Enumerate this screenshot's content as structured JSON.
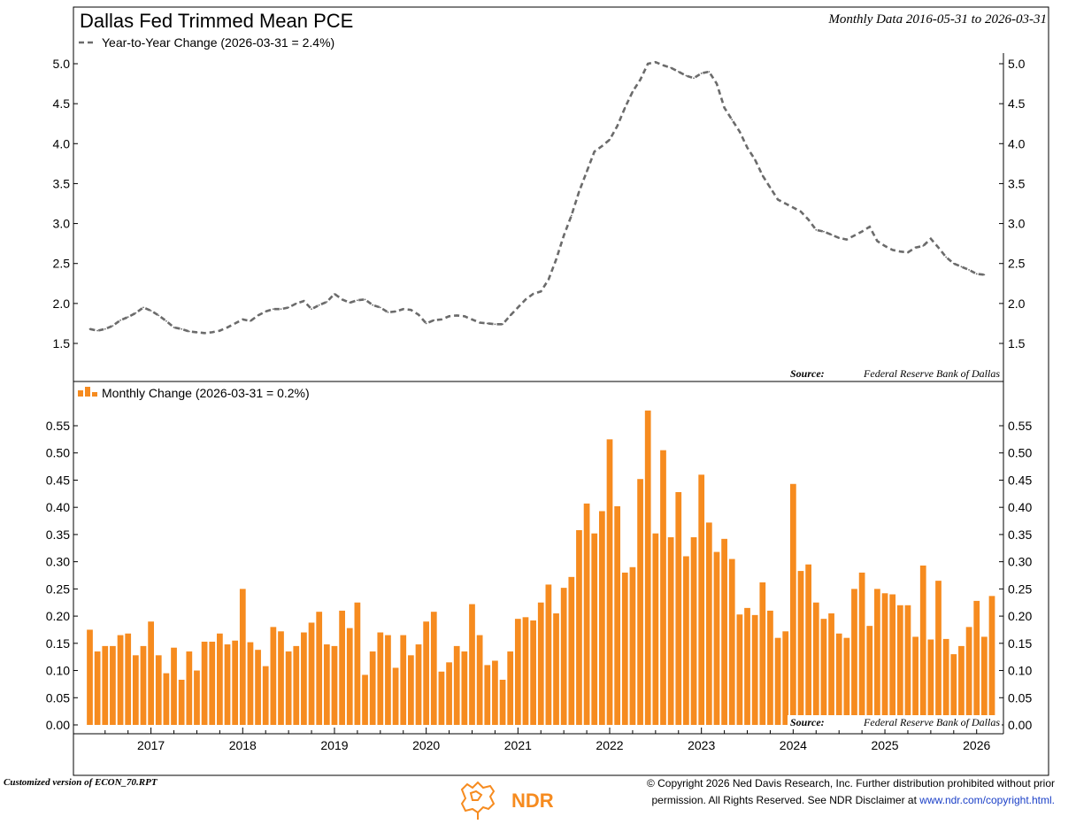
{
  "header": {
    "title": "Dallas Fed Trimmed Mean PCE",
    "date_range": "Monthly Data 2016-05-31 to 2026-03-31"
  },
  "colors": {
    "line": "#6b6b6b",
    "bar": "#f68b1f",
    "link": "#1a3fc7",
    "logo": "#f68b1f"
  },
  "chart_data": [
    {
      "type": "line",
      "legend": "Year-to-Year Change (2026-03-31 = 2.4%)",
      "source_label": "Source:",
      "source_text": "Federal Reserve Bank of Dallas",
      "ylim": [
        1.3,
        5.3
      ],
      "yticks": [
        "1.5",
        "2.0",
        "2.5",
        "3.0",
        "3.5",
        "4.0",
        "4.5",
        "5.0"
      ],
      "start": "2016-05",
      "series": [
        {
          "values": [
            1.68,
            1.66,
            1.68,
            1.72,
            1.79,
            1.83,
            1.88,
            1.95,
            1.91,
            1.85,
            1.78,
            1.7,
            1.68,
            1.65,
            1.64,
            1.63,
            1.64,
            1.66,
            1.7,
            1.75,
            1.8,
            1.78,
            1.85,
            1.9,
            1.93,
            1.93,
            1.95,
            2.0,
            2.03,
            1.93,
            1.98,
            2.02,
            2.12,
            2.05,
            2.01,
            2.04,
            2.05,
            1.98,
            1.95,
            1.89,
            1.9,
            1.93,
            1.92,
            1.86,
            1.75,
            1.79,
            1.8,
            1.84,
            1.85,
            1.84,
            1.8,
            1.76,
            1.75,
            1.74,
            1.74,
            1.85,
            1.95,
            2.05,
            2.12,
            2.15,
            2.3,
            2.55,
            2.85,
            3.1,
            3.4,
            3.65,
            3.9,
            3.97,
            4.05,
            4.22,
            4.45,
            4.65,
            4.8,
            5.0,
            5.02,
            4.98,
            4.95,
            4.9,
            4.85,
            4.82,
            4.88,
            4.9,
            4.75,
            4.45,
            4.3,
            4.15,
            3.95,
            3.8,
            3.6,
            3.45,
            3.3,
            3.25,
            3.2,
            3.15,
            3.05,
            2.92,
            2.9,
            2.86,
            2.82,
            2.8,
            2.85,
            2.9,
            2.96,
            2.78,
            2.72,
            2.67,
            2.65,
            2.64,
            2.7,
            2.72,
            2.81,
            2.7,
            2.58,
            2.5,
            2.46,
            2.42,
            2.37,
            2.36
          ]
        }
      ]
    },
    {
      "type": "bar",
      "legend": "Monthly Change (2026-03-31 = 0.2%)",
      "source_label": "Source:",
      "source_text": "Federal Reserve Bank of Dallas",
      "ylim": [
        0.0,
        0.6
      ],
      "yticks": [
        "0.00",
        "0.05",
        "0.10",
        "0.15",
        "0.20",
        "0.25",
        "0.30",
        "0.35",
        "0.40",
        "0.45",
        "0.50",
        "0.55"
      ],
      "xticks": [
        "2017",
        "2018",
        "2019",
        "2020",
        "2021",
        "2022",
        "2023",
        "2024",
        "2025",
        "2026"
      ],
      "start": "2016-05",
      "series": [
        {
          "values": [
            0.175,
            0.135,
            0.145,
            0.145,
            0.165,
            0.168,
            0.128,
            0.145,
            0.19,
            0.128,
            0.095,
            0.142,
            0.083,
            0.135,
            0.1,
            0.153,
            0.153,
            0.168,
            0.148,
            0.155,
            0.25,
            0.152,
            0.138,
            0.108,
            0.18,
            0.172,
            0.135,
            0.145,
            0.17,
            0.188,
            0.208,
            0.148,
            0.145,
            0.21,
            0.178,
            0.225,
            0.092,
            0.135,
            0.17,
            0.165,
            0.105,
            0.165,
            0.128,
            0.148,
            0.19,
            0.208,
            0.098,
            0.115,
            0.145,
            0.135,
            0.222,
            0.165,
            0.11,
            0.118,
            0.083,
            0.135,
            0.195,
            0.198,
            0.192,
            0.225,
            0.258,
            0.205,
            0.252,
            0.272,
            0.358,
            0.407,
            0.352,
            0.393,
            0.525,
            0.402,
            0.28,
            0.29,
            0.452,
            0.578,
            0.352,
            0.505,
            0.345,
            0.428,
            0.31,
            0.345,
            0.46,
            0.372,
            0.318,
            0.342,
            0.305,
            0.203,
            0.215,
            0.202,
            0.262,
            0.21,
            0.16,
            0.172,
            0.443,
            0.283,
            0.295,
            0.225,
            0.195,
            0.205,
            0.168,
            0.16,
            0.25,
            0.28,
            0.182,
            0.25,
            0.242,
            0.24,
            0.22,
            0.22,
            0.162,
            0.293,
            0.157,
            0.265,
            0.158,
            0.13,
            0.145,
            0.18,
            0.228,
            0.162,
            0.237
          ]
        }
      ]
    }
  ],
  "footer": {
    "custom": "Customized version of ECON_70.RPT",
    "copyright_line1": "© Copyright 2026 Ned Davis Research, Inc. Further distribution prohibited without prior",
    "copyright_line2": "permission. All Rights Reserved. See NDR Disclaimer at",
    "link": "www.ndr.com/copyright.html.",
    "logo_text": "NDR"
  }
}
